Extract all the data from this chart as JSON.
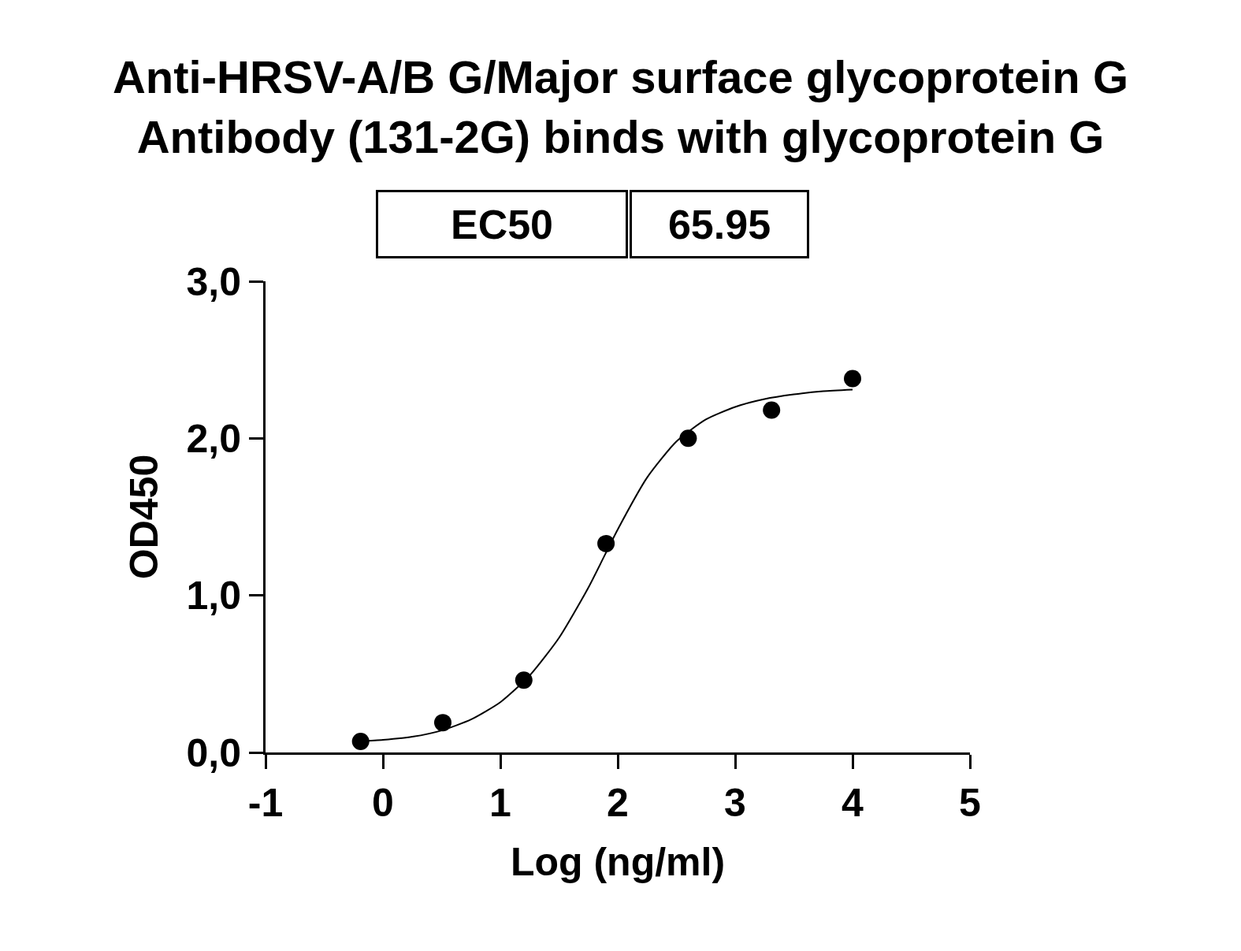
{
  "chart_data": {
    "type": "scatter",
    "title": "Anti-HRSV-A/B G/Major surface glycoprotein G\nAntibody (131-2G) binds with glycoprotein G",
    "xlabel": "Log (ng/ml)",
    "ylabel": "OD450",
    "annotations": [
      "EC50",
      "65.95"
    ],
    "series": [
      {
        "type": "scatter",
        "color": "#000000",
        "marker": "circle",
        "x": [
          -0.19,
          0.51,
          1.2,
          1.9,
          2.6,
          3.31,
          4.0
        ],
        "values": [
          0.07,
          0.19,
          0.46,
          1.33,
          2.0,
          2.18,
          2.38
        ]
      },
      {
        "type": "line",
        "color": "#000000",
        "marker": "none",
        "line_style": "solid",
        "x": [
          -0.2,
          0.0,
          0.25,
          0.5,
          0.75,
          1.0,
          1.25,
          1.5,
          1.75,
          2.0,
          2.25,
          2.5,
          2.75,
          3.0,
          3.25,
          3.5,
          3.75,
          4.0
        ],
        "values": [
          0.07,
          0.08,
          0.1,
          0.14,
          0.21,
          0.32,
          0.49,
          0.73,
          1.05,
          1.42,
          1.75,
          1.98,
          2.12,
          2.2,
          2.25,
          2.28,
          2.3,
          2.31
        ]
      }
    ],
    "xlim": [
      -1,
      5
    ],
    "xticks": [
      -1,
      0,
      1,
      2,
      3,
      4,
      5
    ],
    "ylim": [
      0,
      3
    ],
    "yticks": [
      {
        "value": 0,
        "label": "0,0"
      },
      {
        "value": 1,
        "label": "1,0"
      },
      {
        "value": 2,
        "label": "2,0"
      },
      {
        "value": 3,
        "label": "3,0"
      }
    ],
    "grid": false
  }
}
